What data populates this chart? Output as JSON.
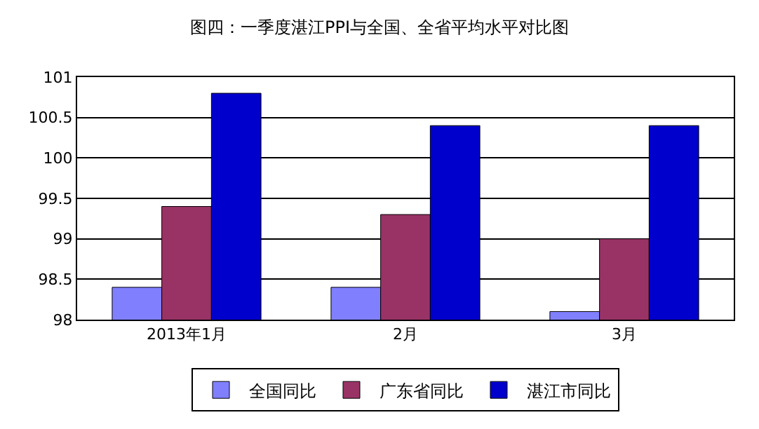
{
  "chart_data": {
    "type": "bar",
    "title": "图四：一季度湛江PPI与全国、全省平均水平对比图",
    "categories": [
      "2013年1月",
      "2月",
      "3月"
    ],
    "series": [
      {
        "name": "全国同比",
        "color": "#8080ff",
        "values": [
          98.4,
          98.4,
          98.1
        ]
      },
      {
        "name": "广东省同比",
        "color": "#993366",
        "values": [
          99.4,
          99.3,
          99.0
        ]
      },
      {
        "name": "湛江市同比",
        "color": "#0000cc",
        "values": [
          100.8,
          100.4,
          100.4
        ]
      }
    ],
    "ylim": [
      98,
      101
    ],
    "yticks": [
      98,
      98.5,
      99,
      99.5,
      100,
      100.5,
      101
    ],
    "grid": "y",
    "legend": "bottom"
  }
}
